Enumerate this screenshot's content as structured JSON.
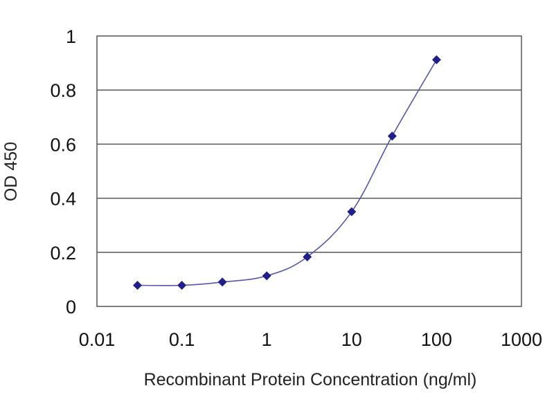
{
  "chart_data": {
    "type": "scatter",
    "title": "",
    "xlabel": "Recombinant Protein Concentration (ng/ml)",
    "ylabel": "OD 450",
    "xscale": "log",
    "xlim": [
      0.01,
      1000
    ],
    "ylim": [
      0,
      1
    ],
    "x_ticks": [
      0.01,
      0.1,
      1,
      10,
      100,
      1000
    ],
    "x_tick_labels": [
      "0.01",
      "0.1",
      "1",
      "10",
      "100",
      "1000"
    ],
    "y_ticks": [
      0,
      0.2,
      0.4,
      0.6,
      0.8,
      1
    ],
    "y_tick_labels": [
      "0",
      "0.2",
      "0.4",
      "0.6",
      "0.8",
      "1"
    ],
    "grid": "horizontal",
    "fitted_curve": true,
    "colors": {
      "series": "#1f1f8a",
      "grid": "#555555",
      "axis": "#555555"
    },
    "series": [
      {
        "x": [
          0.03,
          0.1,
          0.3,
          1,
          3,
          10,
          30,
          100
        ],
        "y": [
          0.078,
          0.078,
          0.09,
          0.113,
          0.183,
          0.35,
          0.63,
          0.912
        ]
      }
    ]
  }
}
